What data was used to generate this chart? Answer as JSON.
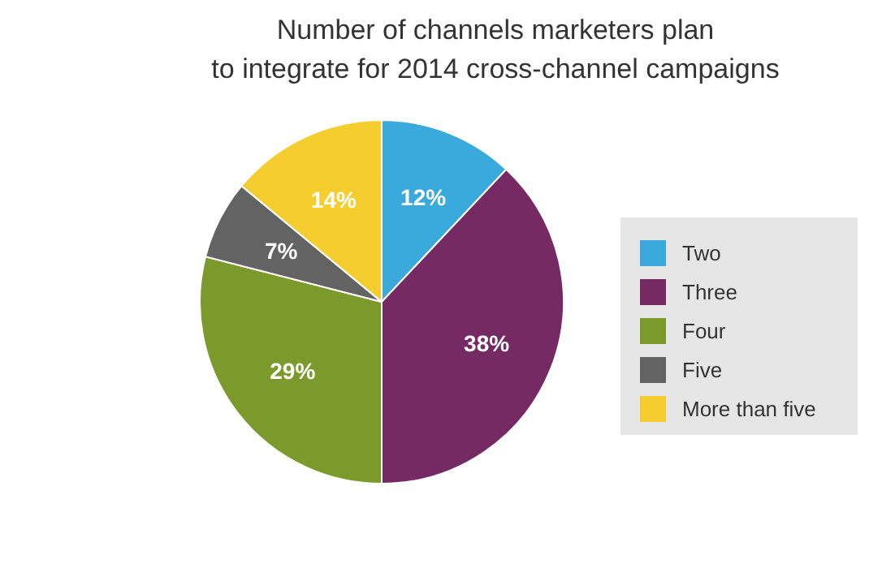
{
  "chart_data": {
    "type": "pie",
    "title": "Number of channels marketers plan\nto integrate for 2014 cross-channel campaigns",
    "categories": [
      "Two",
      "Three",
      "Four",
      "Five",
      "More than five"
    ],
    "values": [
      12,
      38,
      29,
      7,
      14
    ],
    "colors": [
      "#3aa9dc",
      "#762a64",
      "#7b9a2b",
      "#636363",
      "#f6cd2f"
    ],
    "value_labels": [
      "12%",
      "38%",
      "29%",
      "7%",
      "14%"
    ],
    "legend": "right"
  }
}
